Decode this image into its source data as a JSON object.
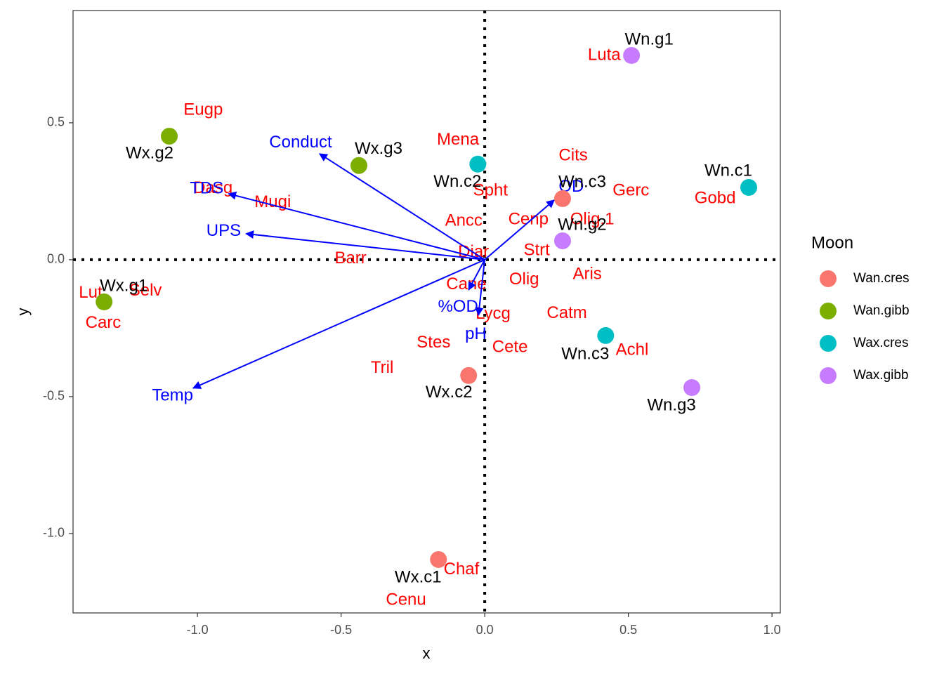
{
  "chart_data": {
    "type": "scatter",
    "x_label": "x",
    "y_label": "y",
    "xlim": [
      -1.433,
      1.029
    ],
    "ylim": [
      -1.29,
      0.91
    ],
    "xticks": [
      {
        "value": -1.0,
        "label": "-1.0"
      },
      -0.5,
      {
        "value": 0.0,
        "label": "0.0"
      },
      0.5,
      {
        "value": 1.0,
        "label": "1.0"
      }
    ],
    "yticks": [
      0.5,
      {
        "value": 0.0,
        "label": "0.0"
      },
      -0.5,
      {
        "value": -1.0,
        "label": "-1.0"
      }
    ],
    "reference_lines": {
      "x": 0,
      "y": 0
    },
    "legend_title": "Moon",
    "legend_position": "right",
    "series": [
      {
        "name": "Wan.cres",
        "color": "#F8766D",
        "labels": [
          "Wn.c3",
          "Wx.c2",
          "Wx.c1"
        ],
        "x": [
          0.271,
          -0.056,
          -0.161
        ],
        "y": [
          0.223,
          -0.423,
          -1.095
        ]
      },
      {
        "name": "Wan.gibb",
        "color": "#7CAE00",
        "labels": [
          "Wx.g2",
          "Wx.g3",
          "Wx.g1"
        ],
        "x": [
          -1.098,
          -0.438,
          -1.325
        ],
        "y": [
          0.451,
          0.344,
          -0.154
        ]
      },
      {
        "name": "Wax.cres",
        "color": "#00BFC4",
        "labels": [
          "Wn.c2",
          "Wn.c1",
          "Wn.c3"
        ],
        "x": [
          -0.024,
          0.919,
          0.421
        ],
        "y": [
          0.349,
          0.264,
          -0.277
        ]
      },
      {
        "name": "Wax.gibb",
        "color": "#C77CFF",
        "labels": [
          "Wn.g1",
          "Wn.g2",
          "Wn.g3"
        ],
        "x": [
          0.511,
          0.271,
          0.721
        ],
        "y": [
          0.746,
          0.069,
          -0.467
        ]
      }
    ],
    "species": {
      "color": "#FF0000",
      "labels": [
        "Eugp",
        "Dasg",
        "Mugi",
        "Barr",
        "Lut",
        "Selv",
        "Carc",
        "Mena",
        "Spht",
        "Ancc",
        "Cits",
        "Gerc",
        "Gobd",
        "Cenp",
        "Olig.1",
        "Diar",
        "Strt",
        "Aris",
        "Olig",
        "Cane",
        "Lycg",
        "Catm",
        "Cete",
        "Achl",
        "Stes",
        "Tril",
        "Luta",
        "Chaf",
        "Cenu"
      ],
      "x": [
        -0.98,
        -0.946,
        -0.738,
        -0.467,
        -1.372,
        -1.181,
        -1.328,
        -0.093,
        0.02,
        -0.073,
        0.308,
        0.509,
        0.802,
        0.152,
        0.374,
        -0.039,
        0.181,
        0.357,
        0.137,
        -0.064,
        0.029,
        0.286,
        0.088,
        0.513,
        -0.178,
        -0.357,
        0.416,
        -0.081,
        -0.274
      ],
      "y": [
        0.546,
        0.259,
        0.208,
        0.003,
        -0.123,
        -0.115,
        -0.233,
        0.436,
        0.251,
        0.141,
        0.379,
        0.251,
        0.223,
        0.146,
        0.146,
        0.026,
        0.033,
        -0.054,
        -0.074,
        -0.092,
        -0.2,
        -0.197,
        -0.321,
        -0.331,
        -0.305,
        -0.397,
        0.746,
        -1.133,
        -1.244
      ]
    },
    "vectors": {
      "color": "#0000FF",
      "labels": [
        "Conduct",
        "TDS",
        "UPS",
        "Temp",
        "%OD",
        "pH",
        "OD"
      ],
      "x": [
        -0.575,
        -0.892,
        -0.831,
        -1.015,
        -0.056,
        -0.022,
        0.242
      ],
      "y": [
        0.387,
        0.241,
        0.095,
        -0.469,
        -0.11,
        -0.203,
        0.218
      ]
    }
  }
}
